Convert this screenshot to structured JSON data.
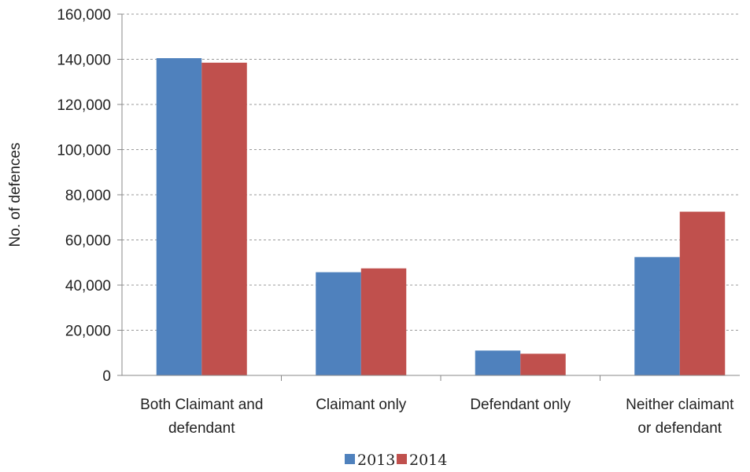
{
  "chart_data": {
    "type": "bar",
    "title": "",
    "xlabel": "",
    "ylabel": "No. of defences",
    "ylim": [
      0,
      160000
    ],
    "yticks": [
      0,
      20000,
      40000,
      60000,
      80000,
      100000,
      120000,
      140000,
      160000
    ],
    "ytick_labels": [
      "0",
      "20,000",
      "40,000",
      "60,000",
      "80,000",
      "100,000",
      "120,000",
      "140,000",
      "160,000"
    ],
    "categories": [
      [
        "Both Claimant and",
        "defendant"
      ],
      [
        "Claimant only"
      ],
      [
        "Defendant only"
      ],
      [
        "Neither claimant",
        "or defendant"
      ]
    ],
    "series": [
      {
        "name": "2013",
        "color": "#4f81bd",
        "values": [
          140500,
          45700,
          11000,
          52400
        ]
      },
      {
        "name": "2014",
        "color": "#c0504d",
        "values": [
          138500,
          47400,
          9600,
          72500
        ]
      }
    ],
    "grid": true,
    "legend": "bottom-center"
  }
}
